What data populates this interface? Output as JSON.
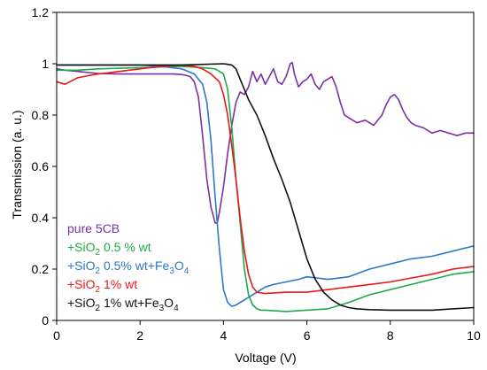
{
  "chart_data": {
    "type": "line",
    "title": "",
    "xlabel": "Voltage (V)",
    "ylabel": "Transmission (a. u.)",
    "xlim": [
      0,
      10
    ],
    "ylim": [
      0,
      1.2
    ],
    "xticks": [
      "0",
      "2",
      "4",
      "6",
      "8",
      "10"
    ],
    "yticks": [
      "0",
      "0.2",
      "0.4",
      "0.6",
      "0.8",
      "1",
      "1.2"
    ],
    "grid": false,
    "legend_placement": "bottom-left",
    "series": [
      {
        "name": "pure 5CB",
        "legend": {
          "pre": "pure 5CB",
          "sub": "",
          "post": ""
        },
        "color": "#7b2fa8",
        "x": [
          0.0,
          0.2,
          0.5,
          1.0,
          1.5,
          2.0,
          2.5,
          2.8,
          3.0,
          3.1,
          3.2,
          3.3,
          3.4,
          3.5,
          3.6,
          3.7,
          3.8,
          3.85,
          3.9,
          4.0,
          4.1,
          4.2,
          4.3,
          4.4,
          4.5,
          4.6,
          4.7,
          4.8,
          4.9,
          5.0,
          5.1,
          5.2,
          5.3,
          5.4,
          5.5,
          5.6,
          5.65,
          5.7,
          5.8,
          5.9,
          6.0,
          6.1,
          6.2,
          6.3,
          6.4,
          6.5,
          6.6,
          6.7,
          6.8,
          6.9,
          7.0,
          7.2,
          7.4,
          7.6,
          7.7,
          7.8,
          7.9,
          8.0,
          8.1,
          8.2,
          8.3,
          8.4,
          8.5,
          8.6,
          8.8,
          9.0,
          9.2,
          9.4,
          9.6,
          9.8,
          10.0
        ],
        "y": [
          0.98,
          0.975,
          0.97,
          0.962,
          0.96,
          0.96,
          0.96,
          0.96,
          0.958,
          0.955,
          0.95,
          0.93,
          0.87,
          0.72,
          0.55,
          0.44,
          0.38,
          0.38,
          0.42,
          0.52,
          0.65,
          0.76,
          0.85,
          0.89,
          0.88,
          0.91,
          0.97,
          0.93,
          0.96,
          0.92,
          0.95,
          0.98,
          0.93,
          0.92,
          0.95,
          1.0,
          1.005,
          0.96,
          0.91,
          0.93,
          0.94,
          0.96,
          0.92,
          0.9,
          0.93,
          0.94,
          0.95,
          0.91,
          0.85,
          0.8,
          0.79,
          0.77,
          0.78,
          0.76,
          0.78,
          0.8,
          0.84,
          0.87,
          0.88,
          0.86,
          0.82,
          0.79,
          0.77,
          0.76,
          0.75,
          0.73,
          0.74,
          0.73,
          0.72,
          0.73,
          0.73
        ]
      },
      {
        "name": "+SiO2 0.5 % wt",
        "legend": {
          "pre": "+SiO",
          "sub": "2",
          "post": " 0.5 % wt"
        },
        "color": "#1faa4b",
        "x": [
          0.0,
          0.5,
          1.0,
          2.0,
          3.0,
          3.5,
          3.8,
          4.0,
          4.1,
          4.2,
          4.3,
          4.4,
          4.5,
          4.6,
          4.7,
          4.8,
          4.9,
          5.0,
          5.5,
          6.0,
          6.5,
          7.0,
          7.5,
          8.0,
          8.5,
          9.0,
          9.5,
          10.0
        ],
        "y": [
          0.975,
          0.975,
          0.98,
          0.985,
          0.99,
          0.985,
          0.98,
          0.96,
          0.9,
          0.75,
          0.55,
          0.38,
          0.2,
          0.1,
          0.06,
          0.045,
          0.04,
          0.04,
          0.035,
          0.04,
          0.045,
          0.07,
          0.1,
          0.12,
          0.14,
          0.16,
          0.18,
          0.19
        ]
      },
      {
        "name": "+SiO2 0.5% wt+Fe3O4",
        "legend": {
          "pre": "+SiO",
          "sub": "2",
          "post": " 0.5% wt+Fe",
          "sub2": "3",
          "post2": "O",
          "sub3": "4"
        },
        "color": "#2e78c6",
        "x": [
          0.0,
          0.5,
          1.0,
          2.0,
          2.5,
          3.0,
          3.3,
          3.5,
          3.6,
          3.7,
          3.8,
          3.9,
          4.0,
          4.1,
          4.2,
          4.3,
          4.5,
          4.8,
          5.0,
          5.2,
          5.5,
          5.8,
          6.0,
          6.5,
          7.0,
          7.5,
          8.0,
          8.5,
          9.0,
          9.5,
          10.0
        ],
        "y": [
          0.995,
          0.995,
          0.995,
          0.995,
          0.99,
          0.98,
          0.96,
          0.92,
          0.85,
          0.7,
          0.48,
          0.28,
          0.12,
          0.07,
          0.055,
          0.06,
          0.08,
          0.11,
          0.13,
          0.14,
          0.15,
          0.16,
          0.17,
          0.16,
          0.17,
          0.2,
          0.22,
          0.24,
          0.25,
          0.27,
          0.29
        ]
      },
      {
        "name": "+SiO2 1% wt",
        "legend": {
          "pre": "+SiO",
          "sub": "2",
          "post": " 1% wt"
        },
        "color": "#e81818",
        "x": [
          0.0,
          0.2,
          0.5,
          0.8,
          1.0,
          1.5,
          2.0,
          2.5,
          3.0,
          3.3,
          3.5,
          3.7,
          3.9,
          4.0,
          4.1,
          4.2,
          4.3,
          4.4,
          4.5,
          4.6,
          4.7,
          4.8,
          5.0,
          5.5,
          6.0,
          6.5,
          7.0,
          7.5,
          8.0,
          8.5,
          9.0,
          9.5,
          10.0
        ],
        "y": [
          0.93,
          0.92,
          0.945,
          0.955,
          0.96,
          0.97,
          0.98,
          0.99,
          0.995,
          0.99,
          0.98,
          0.96,
          0.93,
          0.88,
          0.8,
          0.68,
          0.55,
          0.4,
          0.27,
          0.18,
          0.13,
          0.11,
          0.105,
          0.11,
          0.11,
          0.12,
          0.13,
          0.14,
          0.15,
          0.165,
          0.18,
          0.2,
          0.21
        ]
      },
      {
        "name": "+SiO2 1% wt+Fe3O4",
        "legend": {
          "pre": "+SiO",
          "sub": "2",
          "post": " 1% wt+Fe",
          "sub2": "3",
          "post2": "O",
          "sub3": "4"
        },
        "color": "#111111",
        "x": [
          0.0,
          1.0,
          2.0,
          3.0,
          4.0,
          4.2,
          4.3,
          4.4,
          4.5,
          4.6,
          4.8,
          5.0,
          5.2,
          5.4,
          5.6,
          5.8,
          6.0,
          6.2,
          6.4,
          6.6,
          6.8,
          7.0,
          7.2,
          7.5,
          8.0,
          8.5,
          9.0,
          9.5,
          10.0
        ],
        "y": [
          0.995,
          0.995,
          0.995,
          0.995,
          1.0,
          0.995,
          0.98,
          0.94,
          0.9,
          0.86,
          0.8,
          0.72,
          0.63,
          0.55,
          0.46,
          0.35,
          0.24,
          0.16,
          0.11,
          0.08,
          0.06,
          0.05,
          0.045,
          0.042,
          0.04,
          0.04,
          0.04,
          0.045,
          0.05
        ]
      }
    ]
  }
}
